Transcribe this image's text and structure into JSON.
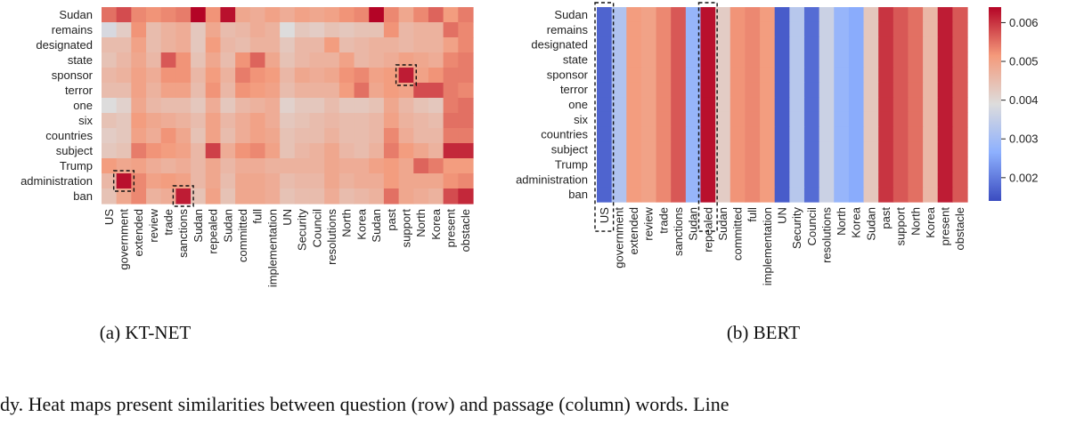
{
  "chart_data": [
    {
      "type": "heatmap",
      "caption": "(a) KT-NET",
      "rows": [
        "Sudan",
        "remains",
        "designated",
        "state",
        "sponsor",
        "terror",
        "one",
        "six",
        "countries",
        "subject",
        "Trump",
        "administration",
        "ban"
      ],
      "columns": [
        "US",
        "government",
        "extended",
        "review",
        "trade",
        "sanctions",
        "Sudan",
        "repealed",
        "Sudan",
        "committed",
        "full",
        "implementation",
        "UN",
        "Security",
        "Council",
        "resolutions",
        "North",
        "Korea",
        "Sudan",
        "past",
        "support",
        "North",
        "Korea",
        "present",
        "obstacle"
      ],
      "values": [
        [
          0.0055,
          0.0058,
          0.0053,
          0.0052,
          0.0053,
          0.0054,
          0.0064,
          0.0052,
          0.0063,
          0.0049,
          0.0048,
          0.005,
          0.0048,
          0.005,
          0.0049,
          0.005,
          0.0052,
          0.0053,
          0.0064,
          0.0053,
          0.0049,
          0.0053,
          0.0056,
          0.0051,
          0.0054
        ],
        [
          0.0038,
          0.0042,
          0.0052,
          0.0045,
          0.0047,
          0.0048,
          0.0043,
          0.0049,
          0.0045,
          0.0046,
          0.0048,
          0.0047,
          0.0039,
          0.0043,
          0.0042,
          0.0044,
          0.0043,
          0.0044,
          0.0044,
          0.0052,
          0.0046,
          0.0047,
          0.0047,
          0.0055,
          0.0053
        ],
        [
          0.0045,
          0.0045,
          0.005,
          0.0045,
          0.0047,
          0.0048,
          0.0043,
          0.0051,
          0.0046,
          0.0045,
          0.0047,
          0.0047,
          0.0043,
          0.0046,
          0.0046,
          0.0051,
          0.0045,
          0.0046,
          0.0047,
          0.0047,
          0.0046,
          0.0047,
          0.0047,
          0.005,
          0.0053
        ],
        [
          0.0044,
          0.0046,
          0.0049,
          0.0046,
          0.0057,
          0.0052,
          0.0044,
          0.0049,
          0.0045,
          0.0052,
          0.0056,
          0.0049,
          0.0044,
          0.0046,
          0.0047,
          0.0047,
          0.005,
          0.0046,
          0.0047,
          0.0048,
          0.005,
          0.0049,
          0.0048,
          0.0053,
          0.0054
        ],
        [
          0.0046,
          0.0047,
          0.005,
          0.0048,
          0.0052,
          0.0052,
          0.0046,
          0.0051,
          0.0047,
          0.0054,
          0.0052,
          0.0051,
          0.0046,
          0.0049,
          0.0048,
          0.0049,
          0.0052,
          0.0053,
          0.005,
          0.0051,
          0.0062,
          0.005,
          0.0052,
          0.0054,
          0.0054
        ],
        [
          0.0045,
          0.0045,
          0.005,
          0.0047,
          0.005,
          0.005,
          0.0045,
          0.0052,
          0.0046,
          0.0052,
          0.0051,
          0.005,
          0.0045,
          0.0047,
          0.0047,
          0.0047,
          0.0051,
          0.0055,
          0.0049,
          0.0051,
          0.005,
          0.0058,
          0.0058,
          0.0054,
          0.0053
        ],
        [
          0.0039,
          0.0041,
          0.0049,
          0.0046,
          0.0045,
          0.0045,
          0.0043,
          0.0048,
          0.0043,
          0.0046,
          0.0047,
          0.0048,
          0.0041,
          0.0043,
          0.0043,
          0.0045,
          0.0043,
          0.0043,
          0.0044,
          0.0049,
          0.0046,
          0.0044,
          0.0043,
          0.0054,
          0.0055
        ],
        [
          0.0044,
          0.0043,
          0.0051,
          0.0049,
          0.0048,
          0.0047,
          0.0045,
          0.005,
          0.0046,
          0.0048,
          0.005,
          0.0048,
          0.0043,
          0.0044,
          0.0045,
          0.0046,
          0.0045,
          0.0045,
          0.0046,
          0.005,
          0.0047,
          0.0046,
          0.0045,
          0.0055,
          0.0055
        ],
        [
          0.0042,
          0.0043,
          0.005,
          0.0048,
          0.0052,
          0.0049,
          0.0044,
          0.005,
          0.0045,
          0.0048,
          0.005,
          0.0049,
          0.0044,
          0.0045,
          0.0045,
          0.0047,
          0.0045,
          0.0045,
          0.0046,
          0.0053,
          0.0048,
          0.0046,
          0.0046,
          0.0054,
          0.0054
        ],
        [
          0.0043,
          0.0044,
          0.0054,
          0.0052,
          0.0051,
          0.005,
          0.0046,
          0.0059,
          0.0048,
          0.0052,
          0.0053,
          0.005,
          0.0044,
          0.0046,
          0.0047,
          0.0049,
          0.0046,
          0.0045,
          0.0047,
          0.0054,
          0.0051,
          0.0049,
          0.0047,
          0.0061,
          0.0061
        ],
        [
          0.0051,
          0.0049,
          0.005,
          0.0048,
          0.0047,
          0.0048,
          0.0046,
          0.0049,
          0.0046,
          0.0048,
          0.0048,
          0.0047,
          0.0047,
          0.0047,
          0.0047,
          0.0049,
          0.0048,
          0.0048,
          0.005,
          0.0051,
          0.0049,
          0.0056,
          0.0054,
          0.0051,
          0.0051
        ],
        [
          0.0046,
          0.0063,
          0.0053,
          0.005,
          0.0051,
          0.005,
          0.0046,
          0.0049,
          0.0045,
          0.0049,
          0.0049,
          0.0048,
          0.0045,
          0.0046,
          0.0046,
          0.0049,
          0.0047,
          0.0048,
          0.0048,
          0.0051,
          0.0049,
          0.0049,
          0.0049,
          0.0052,
          0.0053
        ],
        [
          0.0044,
          0.0049,
          0.0053,
          0.0047,
          0.0048,
          0.0062,
          0.0044,
          0.005,
          0.0044,
          0.0049,
          0.0049,
          0.0048,
          0.0044,
          0.0045,
          0.0045,
          0.0048,
          0.0045,
          0.0046,
          0.0047,
          0.0055,
          0.0049,
          0.0048,
          0.0047,
          0.0058,
          0.0061
        ]
      ],
      "highlighted_cells": [
        {
          "row": "administration",
          "column": "government"
        },
        {
          "row": "ban",
          "column": "sanctions"
        },
        {
          "row": "sponsor",
          "column": "support"
        }
      ]
    },
    {
      "type": "heatmap",
      "caption": "(b) BERT",
      "rows": [
        "Sudan",
        "remains",
        "designated",
        "state",
        "sponsor",
        "terror",
        "one",
        "six",
        "countries",
        "subject",
        "Trump",
        "administration",
        "ban"
      ],
      "columns": [
        "US",
        "government",
        "extended",
        "review",
        "trade",
        "sanctions",
        "Sudan",
        "repealed",
        "Sudan",
        "committed",
        "full",
        "implementation",
        "UN",
        "Security",
        "Council",
        "resolutions",
        "North",
        "Korea",
        "Sudan",
        "past",
        "support",
        "North",
        "Korea",
        "present",
        "obstacle"
      ],
      "column_values": [
        0.0017,
        0.0032,
        0.0051,
        0.005,
        0.0053,
        0.0057,
        0.0028,
        0.0063,
        0.0042,
        0.0052,
        0.0053,
        0.0051,
        0.0016,
        0.0033,
        0.0018,
        0.0036,
        0.0028,
        0.0026,
        0.0043,
        0.006,
        0.0057,
        0.0055,
        0.0046,
        0.0062,
        0.0057
      ],
      "highlighted_columns": [
        "US",
        "repealed"
      ]
    }
  ],
  "colorbar": {
    "min": 0.0014,
    "max": 0.0064,
    "ticks": [
      "0.002",
      "0.003",
      "0.004",
      "0.005",
      "0.006"
    ],
    "colormap": "coolwarm"
  },
  "caption_text": "dy. Heat maps present similarities between question (row) and passage (column) words. Line"
}
